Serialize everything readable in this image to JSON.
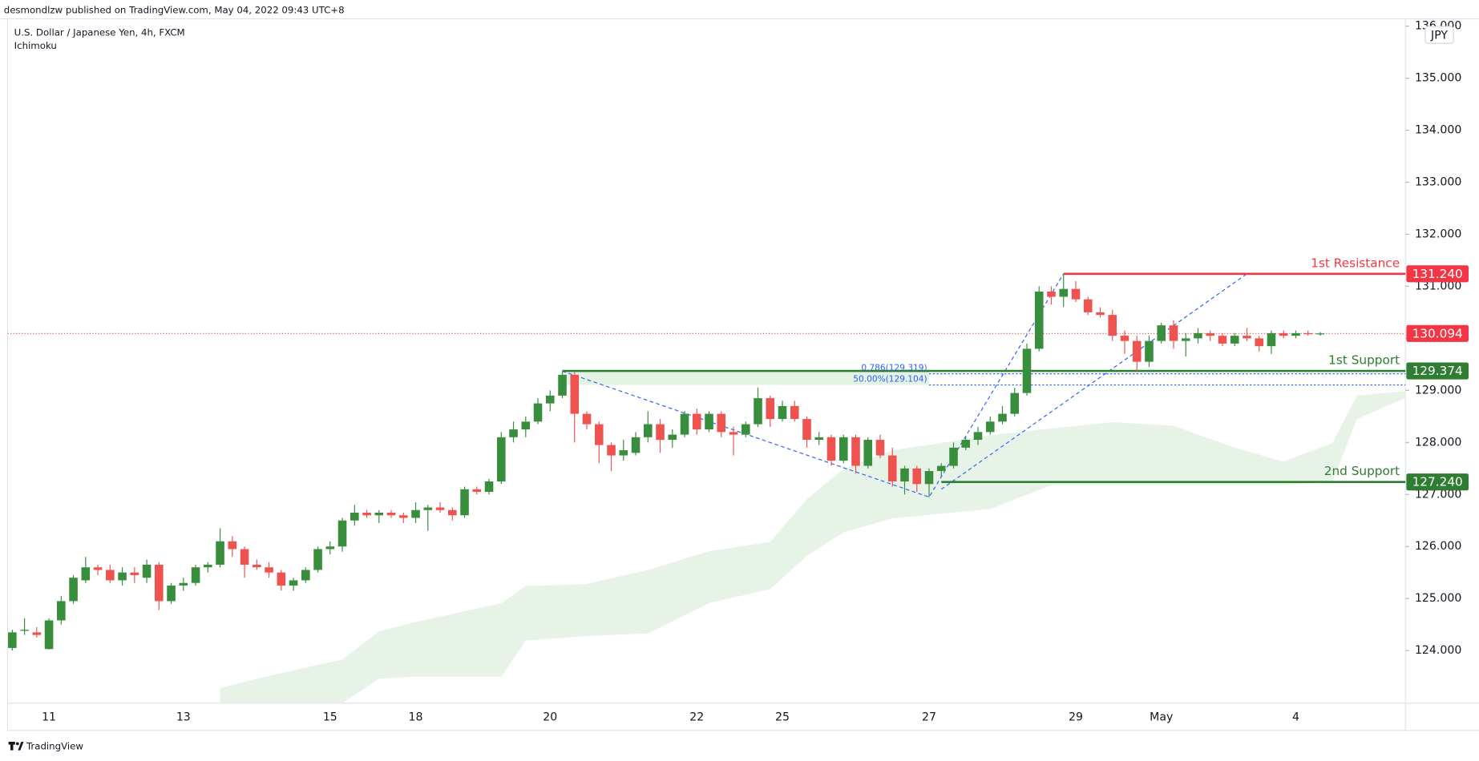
{
  "header": {
    "publisher": "desmondlzw published on TradingView.com, May 04, 2022 09:43 UTC+8",
    "symbol": "U.S. Dollar / Japanese Yen, 4h, FXCM",
    "indicator": "Ichimoku",
    "currency": "JPY"
  },
  "footer": {
    "brand": "TradingView"
  },
  "chart_data": {
    "type": "candlestick",
    "categories": [
      null,
      null,
      null,
      "11",
      null,
      null,
      null,
      null,
      null,
      null,
      null,
      null,
      null,
      null,
      "13",
      null,
      null,
      null,
      null,
      null,
      null,
      null,
      null,
      null,
      null,
      null,
      "15",
      null,
      null,
      null,
      null,
      null,
      null,
      "18",
      null,
      null,
      null,
      null,
      null,
      null,
      null,
      null,
      null,
      null,
      "20",
      null,
      null,
      null,
      null,
      null,
      null,
      null,
      null,
      null,
      null,
      null,
      "22",
      null,
      null,
      null,
      null,
      null,
      null,
      "25",
      null,
      null,
      null,
      null,
      null,
      null,
      null,
      null,
      null,
      null,
      null,
      "27",
      null,
      null,
      null,
      null,
      null,
      null,
      null,
      null,
      null,
      null,
      null,
      "29",
      null,
      null,
      null,
      null,
      null,
      null,
      "May",
      null,
      null,
      null,
      null,
      null,
      null,
      null,
      null,
      null,
      null,
      "4",
      null,
      null
    ],
    "open": [
      124.05,
      124.38,
      124.35,
      124.03,
      124.58,
      124.95,
      125.35,
      125.6,
      125.55,
      125.35,
      125.5,
      125.4,
      125.65,
      124.95,
      125.25,
      125.3,
      125.6,
      125.65,
      126.1,
      125.95,
      125.65,
      125.6,
      125.5,
      125.25,
      125.35,
      125.55,
      125.95,
      126.0,
      126.5,
      126.65,
      126.6,
      126.65,
      126.6,
      126.55,
      126.7,
      126.75,
      126.7,
      126.6,
      127.1,
      127.05,
      127.25,
      128.1,
      128.25,
      128.4,
      128.75,
      128.9,
      129.3,
      128.55,
      128.35,
      127.95,
      127.75,
      127.8,
      128.1,
      128.35,
      128.05,
      128.15,
      128.55,
      128.25,
      128.55,
      128.2,
      128.15,
      128.35,
      128.85,
      128.45,
      128.7,
      128.45,
      128.05,
      128.1,
      127.65,
      128.1,
      127.55,
      128.05,
      127.75,
      127.25,
      127.5,
      127.2,
      127.45,
      127.55,
      127.9,
      128.05,
      128.2,
      128.4,
      128.55,
      128.95,
      129.8,
      130.9,
      130.8,
      130.95,
      130.75,
      130.5,
      130.45,
      130.05,
      129.95,
      129.55,
      129.95,
      130.25,
      129.95,
      130.0,
      130.1,
      130.05,
      129.9,
      130.05,
      130.0,
      129.85,
      130.1,
      130.05,
      130.1,
      130.08
    ],
    "high": [
      124.4,
      124.62,
      124.45,
      124.62,
      125.05,
      125.45,
      125.8,
      125.65,
      125.65,
      125.6,
      125.6,
      125.75,
      125.7,
      125.3,
      125.4,
      125.65,
      125.7,
      126.35,
      126.2,
      126.0,
      125.75,
      125.7,
      125.55,
      125.4,
      125.6,
      126.0,
      126.1,
      126.55,
      126.8,
      126.7,
      126.7,
      126.7,
      126.65,
      126.85,
      126.8,
      126.85,
      126.75,
      127.15,
      127.15,
      127.3,
      128.2,
      128.4,
      128.5,
      128.85,
      129.0,
      129.37,
      129.35,
      128.6,
      128.4,
      128.0,
      128.05,
      128.2,
      128.6,
      128.45,
      128.25,
      128.6,
      128.65,
      128.6,
      128.6,
      128.3,
      128.4,
      129.05,
      128.9,
      128.8,
      128.8,
      128.5,
      128.2,
      128.15,
      128.15,
      128.15,
      128.1,
      128.15,
      127.9,
      127.55,
      127.55,
      127.5,
      127.6,
      128.0,
      128.1,
      128.3,
      128.5,
      128.7,
      129.05,
      129.9,
      131.0,
      131.0,
      131.24,
      131.1,
      130.8,
      130.6,
      130.55,
      130.15,
      130.05,
      130.05,
      130.3,
      130.35,
      130.1,
      130.2,
      130.15,
      130.1,
      130.1,
      130.2,
      130.05,
      130.15,
      130.15,
      130.15,
      130.15,
      130.12
    ],
    "low": [
      124.0,
      124.3,
      124.25,
      124.02,
      124.5,
      124.9,
      125.3,
      125.45,
      125.3,
      125.25,
      125.3,
      125.3,
      124.78,
      124.9,
      125.15,
      125.25,
      125.5,
      125.6,
      125.8,
      125.4,
      125.55,
      125.4,
      125.15,
      125.15,
      125.3,
      125.5,
      125.85,
      125.9,
      126.4,
      126.55,
      126.45,
      126.55,
      126.45,
      126.45,
      126.3,
      126.65,
      126.5,
      126.55,
      127.0,
      127.0,
      127.2,
      128.0,
      128.1,
      128.35,
      128.6,
      128.85,
      128.0,
      128.25,
      127.6,
      127.45,
      127.65,
      127.75,
      128.0,
      127.8,
      127.9,
      128.1,
      128.15,
      128.2,
      128.1,
      127.75,
      128.1,
      128.3,
      128.3,
      128.4,
      128.4,
      127.9,
      127.95,
      127.55,
      127.6,
      127.4,
      127.5,
      127.7,
      127.15,
      127.0,
      127.05,
      126.95,
      127.35,
      127.5,
      127.85,
      127.95,
      128.15,
      128.35,
      128.5,
      128.9,
      129.75,
      130.65,
      130.6,
      130.7,
      130.45,
      130.4,
      129.95,
      129.7,
      129.35,
      129.45,
      129.9,
      129.8,
      129.65,
      129.9,
      129.95,
      129.85,
      129.85,
      129.95,
      129.75,
      129.7,
      130.0,
      130.0,
      130.05,
      130.05
    ],
    "close": [
      124.35,
      124.4,
      124.3,
      124.58,
      124.95,
      125.4,
      125.6,
      125.55,
      125.35,
      125.5,
      125.45,
      125.65,
      124.95,
      125.25,
      125.3,
      125.6,
      125.65,
      126.1,
      125.95,
      125.65,
      125.6,
      125.5,
      125.25,
      125.35,
      125.55,
      125.95,
      126.0,
      126.5,
      126.65,
      126.6,
      126.65,
      126.6,
      126.55,
      126.7,
      126.75,
      126.7,
      126.6,
      127.1,
      127.05,
      127.25,
      128.1,
      128.25,
      128.4,
      128.75,
      128.9,
      129.3,
      128.55,
      128.35,
      127.95,
      127.75,
      127.85,
      128.1,
      128.35,
      128.05,
      128.15,
      128.55,
      128.25,
      128.55,
      128.2,
      128.15,
      128.35,
      128.85,
      128.45,
      128.7,
      128.45,
      128.05,
      128.1,
      127.65,
      128.1,
      127.55,
      128.05,
      127.75,
      127.25,
      127.5,
      127.2,
      127.45,
      127.55,
      127.9,
      128.05,
      128.2,
      128.4,
      128.55,
      128.95,
      129.8,
      130.9,
      130.8,
      130.95,
      130.75,
      130.5,
      130.45,
      130.05,
      129.95,
      129.55,
      129.95,
      130.25,
      129.95,
      130.0,
      130.1,
      130.05,
      129.9,
      130.05,
      130.0,
      129.85,
      130.1,
      130.05,
      130.1,
      130.08,
      130.094
    ],
    "up_color": "#388e3c",
    "down_color": "#ef5350",
    "ylim": [
      122.99,
      136.14
    ],
    "yticks": [
      {
        "value": 124,
        "label": "124.000"
      },
      {
        "value": 125,
        "label": "125.000"
      },
      {
        "value": 126,
        "label": "126.000"
      },
      {
        "value": 127,
        "label": "127.000"
      },
      {
        "value": 128,
        "label": "128.000"
      },
      {
        "value": 129,
        "label": "129.000"
      },
      {
        "value": 130,
        "label": "130.000"
      },
      {
        "value": 131,
        "label": "131.000"
      },
      {
        "value": 132,
        "label": "132.000"
      },
      {
        "value": 133,
        "label": "133.000"
      },
      {
        "value": 134,
        "label": "134.000"
      },
      {
        "value": 135,
        "label": "135.000"
      },
      {
        "value": 136,
        "label": "136.000"
      }
    ],
    "cloud": {
      "color": "#e8f3e8",
      "x": [
        17,
        20,
        27,
        30,
        33,
        40,
        42,
        47,
        52,
        57,
        62,
        65,
        68,
        72,
        76,
        80,
        85,
        90,
        95,
        100,
        104,
        108,
        110,
        114
      ],
      "upper": [
        123.28,
        123.46,
        123.83,
        124.37,
        124.55,
        124.91,
        125.24,
        125.28,
        125.55,
        125.91,
        126.09,
        126.91,
        127.49,
        127.85,
        127.99,
        128.14,
        128.27,
        128.39,
        128.32,
        127.9,
        127.63,
        127.99,
        128.9,
        128.99
      ],
      "lower": [
        122.99,
        122.99,
        122.99,
        123.46,
        123.5,
        123.5,
        124.19,
        124.28,
        124.33,
        124.91,
        125.18,
        125.82,
        126.27,
        126.54,
        126.63,
        126.72,
        127.18,
        127.18,
        127.18,
        127.18,
        127.18,
        127.24,
        128.45,
        128.86
      ]
    },
    "pattern": [
      {
        "color": "#2962ff",
        "x": [
          45,
          75,
          86
        ],
        "y": [
          129.37,
          126.95,
          131.24
        ]
      },
      {
        "color": "#2962ff",
        "x": [
          76,
          101
        ],
        "y": [
          127.1,
          131.24
        ]
      }
    ],
    "last": {
      "value": 130.094,
      "label": "130.094",
      "color": "#f23645"
    },
    "levels": [
      {
        "name": "1st Resistance",
        "value": 131.24,
        "label": "131.240",
        "color": "#f23645"
      },
      {
        "name": "1st Support",
        "value": 129.374,
        "label": "129.374",
        "color": "#2e7d32"
      },
      {
        "name": "2nd Support",
        "value": 127.24,
        "label": "127.240",
        "color": "#2e7d32"
      }
    ],
    "fib": [
      {
        "value": 129.319,
        "label": "0.786(129.319)"
      },
      {
        "value": 129.104,
        "label": "50.00%(129.104)"
      }
    ],
    "fib_color": "#2962ff"
  }
}
